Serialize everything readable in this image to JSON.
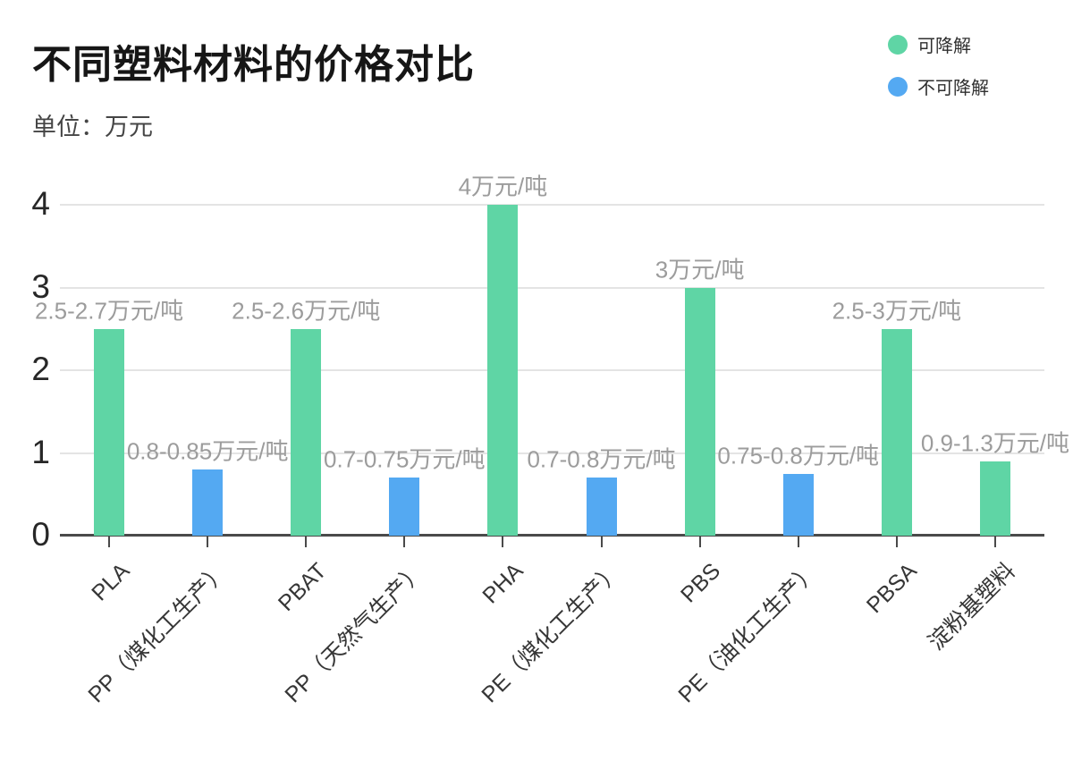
{
  "page": {
    "title": "不同塑料材料的价格对比",
    "subtitle": "单位：万元"
  },
  "chart_data": {
    "type": "bar",
    "title": "不同塑料材料的价格对比",
    "unit_label": "单位：万元",
    "categories": [
      "PLA",
      "PP（煤化工生产）",
      "PBAT",
      "PP（天然气生产）",
      "PHA",
      "PE（煤化工生产）",
      "PBS",
      "PE（油化工生产）",
      "PBSA",
      "淀粉基塑料"
    ],
    "values": [
      2.5,
      0.8,
      2.5,
      0.7,
      4,
      0.7,
      3,
      0.75,
      2.5,
      0.9
    ],
    "data_labels": [
      "2.5-2.7万元/吨",
      "0.8-0.85万元/吨",
      "2.5-2.6万元/吨",
      "0.7-0.75万元/吨",
      "4万元/吨",
      "0.7-0.8万元/吨",
      "3万元/吨",
      "0.75-0.8万元/吨",
      "2.5-3万元/吨",
      "0.9-1.3万元/吨"
    ],
    "point_series": [
      "可降解",
      "不可降解",
      "可降解",
      "不可降解",
      "可降解",
      "不可降解",
      "可降解",
      "不可降解",
      "可降解",
      "可降解"
    ],
    "series_colors": {
      "可降解": "#5fd5a5",
      "不可降解": "#54a9f2"
    },
    "legend": [
      "可降解",
      "不可降解"
    ],
    "legend_position": "top-right",
    "y_ticks": [
      0,
      1,
      2,
      3,
      4
    ],
    "ylim": [
      0,
      4.35
    ],
    "grid": true,
    "xlabel": "",
    "ylabel": "万元"
  }
}
